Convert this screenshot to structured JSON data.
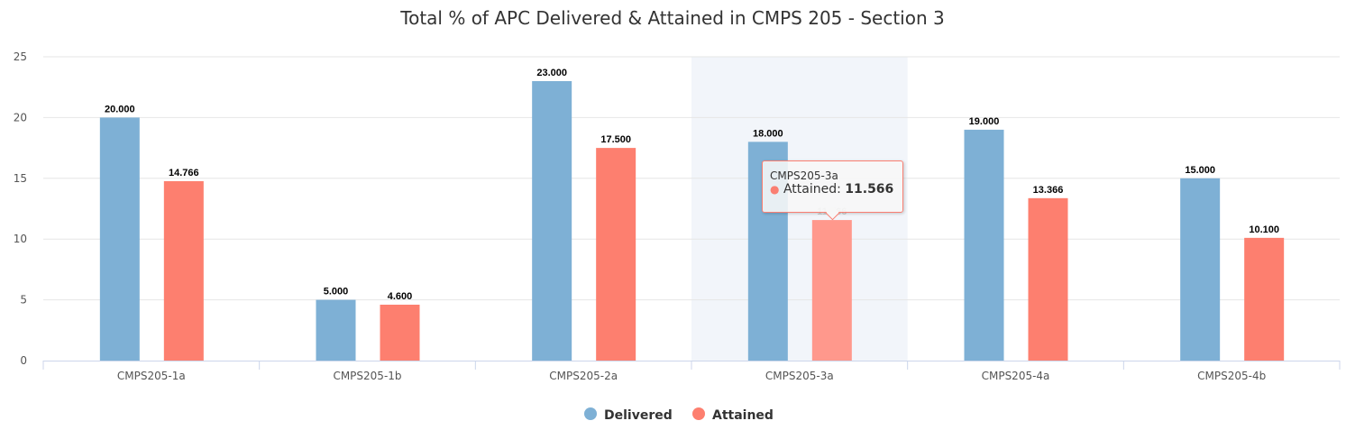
{
  "chart_data": {
    "type": "bar",
    "title": "Total % of APC Delivered & Attained in CMPS 205 - Section 3",
    "categories": [
      "CMPS205-1a",
      "CMPS205-1b",
      "CMPS205-2a",
      "CMPS205-3a",
      "CMPS205-4a",
      "CMPS205-4b"
    ],
    "series": [
      {
        "name": "Delivered",
        "color": "#7eb0d5",
        "values": [
          20,
          5,
          23,
          18,
          19,
          15
        ],
        "labels": [
          "20.000",
          "5.000",
          "23.000",
          "18.000",
          "19.000",
          "15.000"
        ]
      },
      {
        "name": "Attained",
        "color": "#fd7f6f",
        "values": [
          14.766,
          4.6,
          17.5,
          11.566,
          13.366,
          10.1
        ],
        "labels": [
          "14.766",
          "4.600",
          "17.500",
          "11.566",
          "13.366",
          "10.100"
        ]
      }
    ],
    "ylim": [
      0,
      25
    ],
    "yticks": [
      "0",
      "5",
      "10",
      "15",
      "20",
      "25"
    ],
    "yticks_values": [
      0,
      5,
      10,
      15,
      20,
      25
    ],
    "xlabel": "",
    "ylabel": "",
    "grid": true,
    "legend": "bottom-center",
    "highlighted_category": "CMPS205-3a"
  },
  "tooltip": {
    "category": "CMPS205-3a",
    "series": "Attained",
    "sep": ": ",
    "value": "11.566"
  }
}
